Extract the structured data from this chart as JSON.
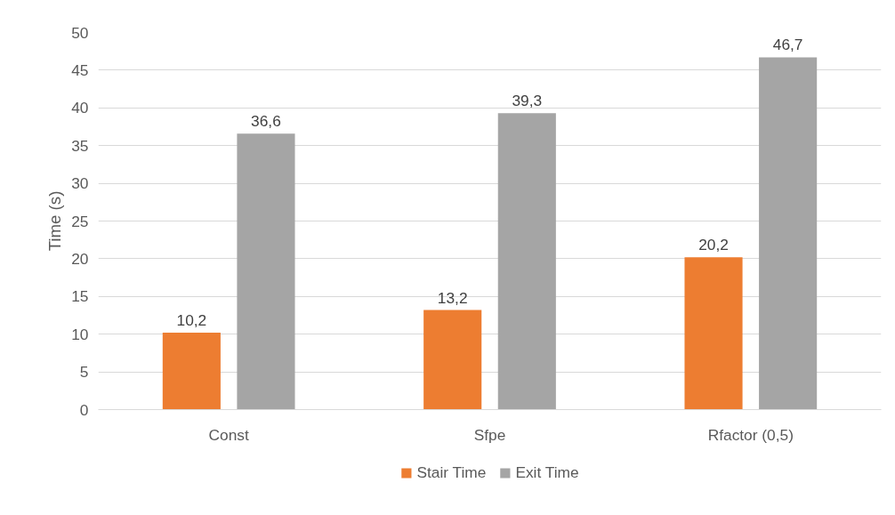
{
  "chart_data": {
    "type": "bar",
    "ylabel": "Time (s)",
    "categories": [
      "Const",
      "Sfpe",
      "Rfactor (0,5)"
    ],
    "series": [
      {
        "name": "Stair Time",
        "color": "#ed7d31",
        "values": [
          10.2,
          13.2,
          20.2
        ],
        "value_labels": [
          "10,2",
          "13,2",
          "20,2"
        ]
      },
      {
        "name": "Exit Time",
        "color": "#a5a5a5",
        "values": [
          36.6,
          39.3,
          46.7
        ],
        "value_labels": [
          "36,6",
          "39,3",
          "46,7"
        ]
      }
    ],
    "ylim": [
      0,
      50
    ],
    "yticks": [
      0,
      5,
      10,
      15,
      20,
      25,
      30,
      35,
      40,
      45,
      50
    ],
    "grid": "y",
    "legend": "bottom"
  }
}
